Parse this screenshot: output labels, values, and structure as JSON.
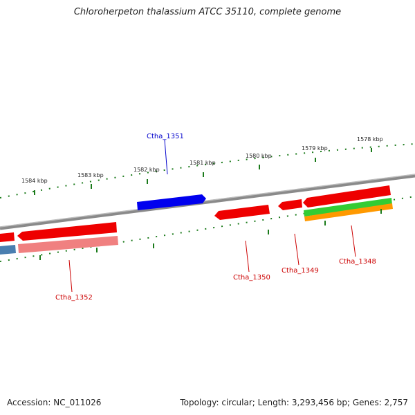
{
  "title": "Chloroherpeton thalassium ATCC 35110, complete genome",
  "footer": {
    "accession": "Accession: NC_011026",
    "stats": "Topology: circular; Length: 3,293,456 bp; Genes: 2,757"
  },
  "tick_labels": [
    "1578 kbp",
    "1579 kbp",
    "1580 kbp",
    "1581 kbp",
    "1582 kbp",
    "1583 kbp",
    "1584 kbp"
  ],
  "genes": [
    {
      "label": "Ctha_1351",
      "color": "#0000cc"
    },
    {
      "label": "Ctha_1350",
      "color": "#cc0000"
    },
    {
      "label": "Ctha_1349",
      "color": "#cc0000"
    },
    {
      "label": "Ctha_1348",
      "color": "#cc0000"
    },
    {
      "label": "Ctha_1352",
      "color": "#cc0000"
    }
  ],
  "colors": {
    "backbone": "#8a8a8a",
    "ticks": "#1a7a1a",
    "gene_red": "#ee0000",
    "gene_pink": "#f08080",
    "gene_blue": "#0000ee",
    "gene_green": "#33cc33",
    "gene_orange": "#ff9900",
    "gene_steel": "#4a7fb0"
  }
}
